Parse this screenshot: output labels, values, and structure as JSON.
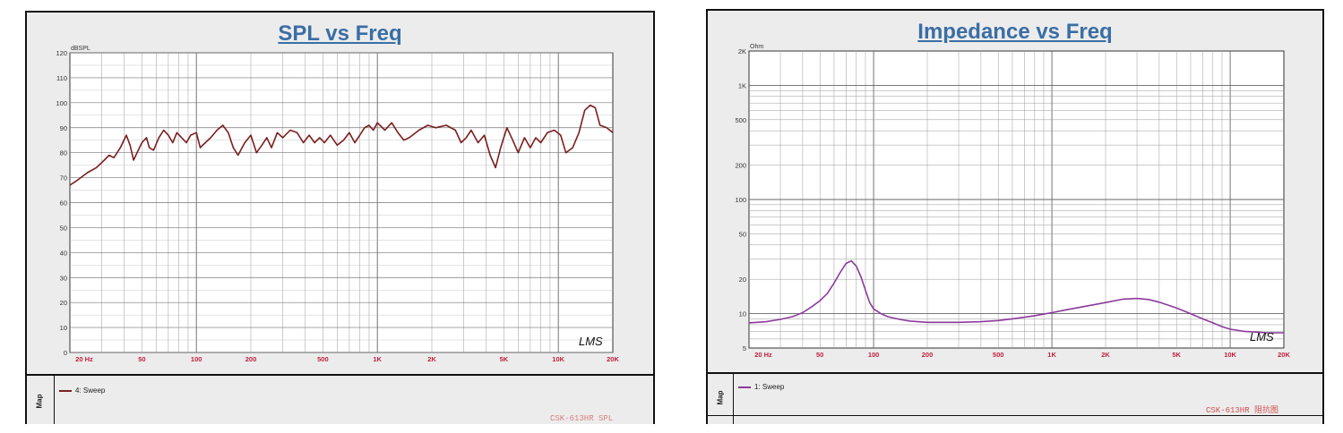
{
  "colors": {
    "spl_line": "#7a1f1f",
    "imp_line": "#8b3a9b",
    "title": "#3a6ea5",
    "tick": "#c02040",
    "grid": "#9a9a9a"
  },
  "spl_panel": {
    "title": "SPL vs Freq",
    "legend_map": "Map",
    "legend_label": "4: Sweep",
    "footnote": "CSK-613HR SPL",
    "watermark": "LMS"
  },
  "imp_panel": {
    "title": "Impedance vs Freq",
    "legend_map": "Map",
    "legend_label": "1: Sweep",
    "footnote": "CSK-613HR 阻抗图",
    "watermark": "LMS"
  },
  "chart_data": [
    {
      "type": "line",
      "title": "SPL vs Freq",
      "ylabel": "dBSPL",
      "xscale": "log",
      "xlim": [
        20,
        20000
      ],
      "ylim": [
        0,
        120
      ],
      "grid": true,
      "x_ticks": [
        {
          "v": 20,
          "label": "20  Hz"
        },
        {
          "v": 50,
          "label": "50"
        },
        {
          "v": 100,
          "label": "100"
        },
        {
          "v": 200,
          "label": "200"
        },
        {
          "v": 500,
          "label": "500"
        },
        {
          "v": 1000,
          "label": "1K"
        },
        {
          "v": 2000,
          "label": "2K"
        },
        {
          "v": 5000,
          "label": "5K"
        },
        {
          "v": 10000,
          "label": "10K"
        },
        {
          "v": 20000,
          "label": "20K"
        }
      ],
      "y_ticks": [
        0,
        10,
        20,
        30,
        40,
        50,
        60,
        70,
        80,
        90,
        100,
        110,
        120
      ],
      "series": [
        {
          "name": "4: Sweep",
          "points": [
            [
              20,
              67
            ],
            [
              22,
              69
            ],
            [
              25,
              72
            ],
            [
              28,
              74
            ],
            [
              31,
              77
            ],
            [
              33,
              79
            ],
            [
              35,
              78
            ],
            [
              38,
              82
            ],
            [
              41,
              87
            ],
            [
              43,
              83
            ],
            [
              45,
              77
            ],
            [
              47,
              80
            ],
            [
              50,
              84
            ],
            [
              53,
              86
            ],
            [
              55,
              82
            ],
            [
              58,
              81
            ],
            [
              62,
              86
            ],
            [
              66,
              89
            ],
            [
              70,
              87
            ],
            [
              74,
              84
            ],
            [
              78,
              88
            ],
            [
              83,
              86
            ],
            [
              88,
              84
            ],
            [
              93,
              87
            ],
            [
              100,
              88
            ],
            [
              105,
              82
            ],
            [
              112,
              84
            ],
            [
              120,
              86
            ],
            [
              130,
              89
            ],
            [
              140,
              91
            ],
            [
              150,
              88
            ],
            [
              160,
              82
            ],
            [
              170,
              79
            ],
            [
              185,
              84
            ],
            [
              200,
              87
            ],
            [
              215,
              80
            ],
            [
              230,
              83
            ],
            [
              245,
              86
            ],
            [
              260,
              82
            ],
            [
              280,
              88
            ],
            [
              300,
              86
            ],
            [
              330,
              89
            ],
            [
              360,
              88
            ],
            [
              390,
              84
            ],
            [
              420,
              87
            ],
            [
              450,
              84
            ],
            [
              480,
              86
            ],
            [
              510,
              84
            ],
            [
              550,
              87
            ],
            [
              600,
              83
            ],
            [
              650,
              85
            ],
            [
              700,
              88
            ],
            [
              750,
              84
            ],
            [
              800,
              87
            ],
            [
              850,
              90
            ],
            [
              900,
              91
            ],
            [
              950,
              89
            ],
            [
              1000,
              92
            ],
            [
              1100,
              89
            ],
            [
              1200,
              92
            ],
            [
              1300,
              88
            ],
            [
              1400,
              85
            ],
            [
              1500,
              86
            ],
            [
              1700,
              89
            ],
            [
              1900,
              91
            ],
            [
              2100,
              90
            ],
            [
              2400,
              91
            ],
            [
              2700,
              89
            ],
            [
              2900,
              84
            ],
            [
              3100,
              86
            ],
            [
              3300,
              89
            ],
            [
              3600,
              84
            ],
            [
              3900,
              87
            ],
            [
              4200,
              79
            ],
            [
              4500,
              74
            ],
            [
              4800,
              82
            ],
            [
              5200,
              90
            ],
            [
              5600,
              85
            ],
            [
              6000,
              80
            ],
            [
              6500,
              86
            ],
            [
              7000,
              82
            ],
            [
              7500,
              86
            ],
            [
              8000,
              84
            ],
            [
              8700,
              88
            ],
            [
              9500,
              89
            ],
            [
              10300,
              87
            ],
            [
              11000,
              80
            ],
            [
              12000,
              82
            ],
            [
              13000,
              88
            ],
            [
              14000,
              97
            ],
            [
              15000,
              99
            ],
            [
              16000,
              98
            ],
            [
              17000,
              91
            ],
            [
              18500,
              90
            ],
            [
              20000,
              88
            ]
          ]
        }
      ]
    },
    {
      "type": "line",
      "title": "Impedance vs Freq",
      "ylabel": "Ohm",
      "xscale": "log",
      "yscale": "log",
      "xlim": [
        20,
        20000
      ],
      "ylim": [
        5,
        2000
      ],
      "grid": true,
      "x_ticks": [
        {
          "v": 20,
          "label": "20  Hz"
        },
        {
          "v": 50,
          "label": "50"
        },
        {
          "v": 100,
          "label": "100"
        },
        {
          "v": 200,
          "label": "200"
        },
        {
          "v": 500,
          "label": "500"
        },
        {
          "v": 1000,
          "label": "1K"
        },
        {
          "v": 2000,
          "label": "2K"
        },
        {
          "v": 5000,
          "label": "5K"
        },
        {
          "v": 10000,
          "label": "10K"
        },
        {
          "v": 20000,
          "label": "20K"
        }
      ],
      "y_ticks": [
        {
          "v": 5,
          "label": "5"
        },
        {
          "v": 10,
          "label": "10"
        },
        {
          "v": 20,
          "label": "20"
        },
        {
          "v": 50,
          "label": "50"
        },
        {
          "v": 100,
          "label": "100"
        },
        {
          "v": 200,
          "label": "200"
        },
        {
          "v": 500,
          "label": "500"
        },
        {
          "v": 1000,
          "label": "1K"
        },
        {
          "v": 2000,
          "label": "2K"
        }
      ],
      "series": [
        {
          "name": "1: Sweep",
          "points": [
            [
              20,
              8.3
            ],
            [
              25,
              8.5
            ],
            [
              30,
              8.9
            ],
            [
              35,
              9.4
            ],
            [
              40,
              10.2
            ],
            [
              45,
              11.5
            ],
            [
              50,
              13
            ],
            [
              55,
              15
            ],
            [
              60,
              18.5
            ],
            [
              65,
              23
            ],
            [
              70,
              27.5
            ],
            [
              75,
              29
            ],
            [
              80,
              26
            ],
            [
              85,
              21
            ],
            [
              90,
              16
            ],
            [
              95,
              12.5
            ],
            [
              100,
              11
            ],
            [
              110,
              10
            ],
            [
              120,
              9.4
            ],
            [
              140,
              8.9
            ],
            [
              160,
              8.6
            ],
            [
              200,
              8.4
            ],
            [
              300,
              8.4
            ],
            [
              400,
              8.5
            ],
            [
              500,
              8.7
            ],
            [
              600,
              9
            ],
            [
              700,
              9.3
            ],
            [
              800,
              9.6
            ],
            [
              900,
              9.9
            ],
            [
              1000,
              10.2
            ],
            [
              1200,
              10.8
            ],
            [
              1500,
              11.5
            ],
            [
              2000,
              12.5
            ],
            [
              2500,
              13.4
            ],
            [
              3000,
              13.6
            ],
            [
              3500,
              13.3
            ],
            [
              4000,
              12.6
            ],
            [
              5000,
              11.2
            ],
            [
              6000,
              10
            ],
            [
              7000,
              9
            ],
            [
              8000,
              8.3
            ],
            [
              9000,
              7.7
            ],
            [
              10000,
              7.3
            ],
            [
              12000,
              7
            ],
            [
              14000,
              6.9
            ],
            [
              16000,
              6.8
            ],
            [
              20000,
              6.8
            ]
          ]
        }
      ]
    }
  ]
}
